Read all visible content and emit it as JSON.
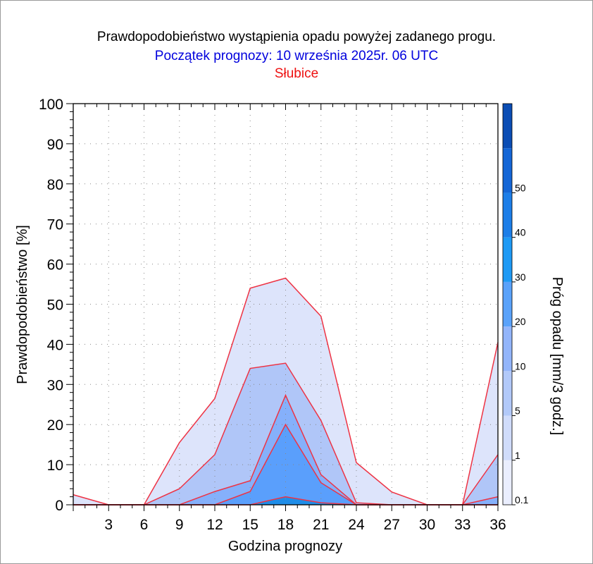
{
  "header": {
    "title": "Prawdopodobieństwo wystąpienia opadu powyżej zadanego progu.",
    "subtitle": "Początek prognozy: 10 września 2025r. 06 UTC",
    "location": "Słubice"
  },
  "colors": {
    "title": "#000000",
    "subtitle": "#0000dd",
    "location": "#ee1111",
    "series_line": "#ee3344"
  },
  "chart_data": {
    "type": "area",
    "xlabel": "Godzina prognozy",
    "ylabel": "Prawdopodobieństwo [%]",
    "colorbar_label": "Próg opadu [mm/3 godz.]",
    "x": [
      0,
      3,
      6,
      9,
      12,
      15,
      18,
      21,
      24,
      27,
      30,
      33,
      36
    ],
    "xlim": [
      0,
      36
    ],
    "ylim": [
      0,
      100
    ],
    "x_ticks": [
      3,
      6,
      9,
      12,
      15,
      18,
      21,
      24,
      27,
      30,
      33,
      36
    ],
    "y_ticks": [
      0,
      10,
      20,
      30,
      40,
      50,
      60,
      70,
      80,
      90,
      100
    ],
    "grid": "dotted",
    "series": [
      {
        "threshold": 0.1,
        "color": "#dde4fb",
        "values": [
          2.5,
          0,
          0,
          15.5,
          26.5,
          54,
          56.5,
          47,
          10.5,
          3.2,
          0,
          0,
          40.5
        ]
      },
      {
        "threshold": 1,
        "color": "#b0c6f8",
        "values": [
          0,
          0,
          0,
          4,
          12.5,
          34,
          35.3,
          21,
          0.5,
          0,
          0,
          0,
          12.5
        ]
      },
      {
        "threshold": 5,
        "color": "#85b0fb",
        "values": [
          0,
          0,
          0,
          0,
          3.3,
          6,
          27.3,
          7.5,
          0,
          0,
          0,
          0,
          2
        ]
      },
      {
        "threshold": 10,
        "color": "#5a9ffc",
        "values": [
          0,
          0,
          0,
          0,
          0,
          3.3,
          20,
          5.5,
          0,
          0,
          0,
          0,
          0
        ]
      },
      {
        "threshold": 20,
        "color": "#1f8de8",
        "values": [
          0,
          0,
          0,
          0,
          0,
          0,
          2,
          0.5,
          0,
          0,
          0,
          0,
          0
        ]
      }
    ],
    "colorbar": {
      "bounds": [
        0.1,
        1,
        5,
        10,
        20,
        30,
        40,
        50,
        60
      ],
      "labels": [
        "0.1",
        "1",
        "5",
        "10",
        "20",
        "30",
        "40",
        "50"
      ],
      "colors": [
        "#eaeefe",
        "#d0dcfb",
        "#b2c9f9",
        "#93b5fb",
        "#5aa2fa",
        "#1e9af5",
        "#1c7ee8",
        "#1466d6",
        "#0b4db4"
      ]
    }
  }
}
